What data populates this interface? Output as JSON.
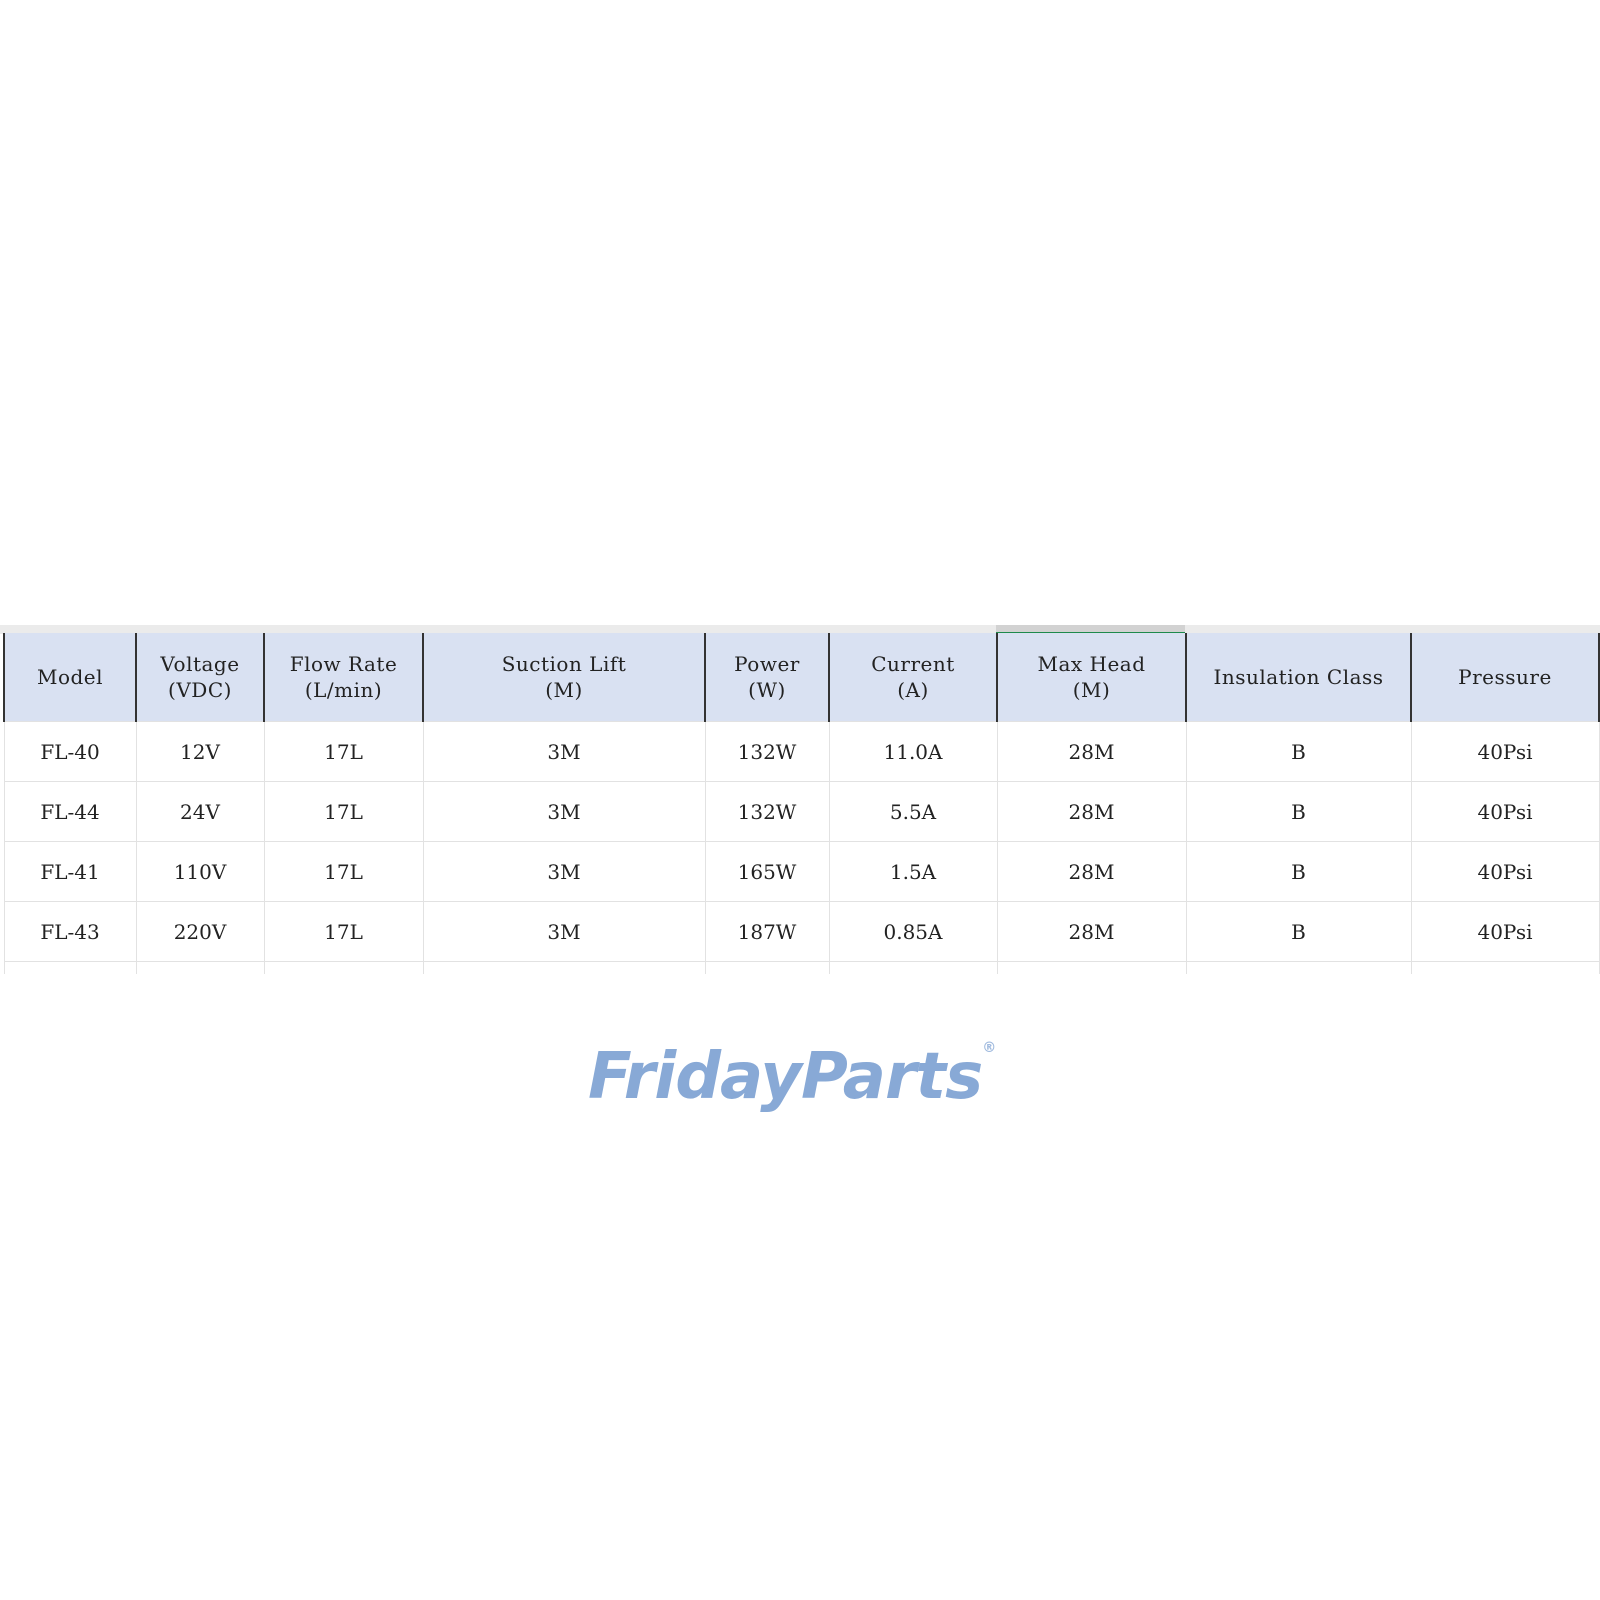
{
  "table": {
    "headers": [
      {
        "line1": "Model",
        "line2": ""
      },
      {
        "line1": "Voltage",
        "line2": "(VDC)"
      },
      {
        "line1": "Flow Rate",
        "line2": "(L/min)"
      },
      {
        "line1": "Suction Lift",
        "line2": "(M)"
      },
      {
        "line1": "Power",
        "line2": "(W)"
      },
      {
        "line1": "Current",
        "line2": "(A)"
      },
      {
        "line1": "Max Head",
        "line2": "(M)"
      },
      {
        "line1": "Insulation Class",
        "line2": ""
      },
      {
        "line1": "Pressure",
        "line2": ""
      }
    ],
    "rows": [
      [
        "FL-40",
        "12V",
        "17L",
        "3M",
        "132W",
        "11.0A",
        "28M",
        "B",
        "40Psi"
      ],
      [
        "FL-44",
        "24V",
        "17L",
        "3M",
        "132W",
        "5.5A",
        "28M",
        "B",
        "40Psi"
      ],
      [
        "FL-41",
        "110V",
        "17L",
        "3M",
        "165W",
        "1.5A",
        "28M",
        "B",
        "40Psi"
      ],
      [
        "FL-43",
        "220V",
        "17L",
        "3M",
        "187W",
        "0.85A",
        "28M",
        "B",
        "40Psi"
      ]
    ]
  },
  "watermark": {
    "part1": "Friday",
    "part2": "Parts",
    "mark": "®"
  },
  "colors": {
    "header_bg": "#d9e1f2",
    "selected_column_accent": "#1e8a4c",
    "watermark": "#608cc8"
  }
}
